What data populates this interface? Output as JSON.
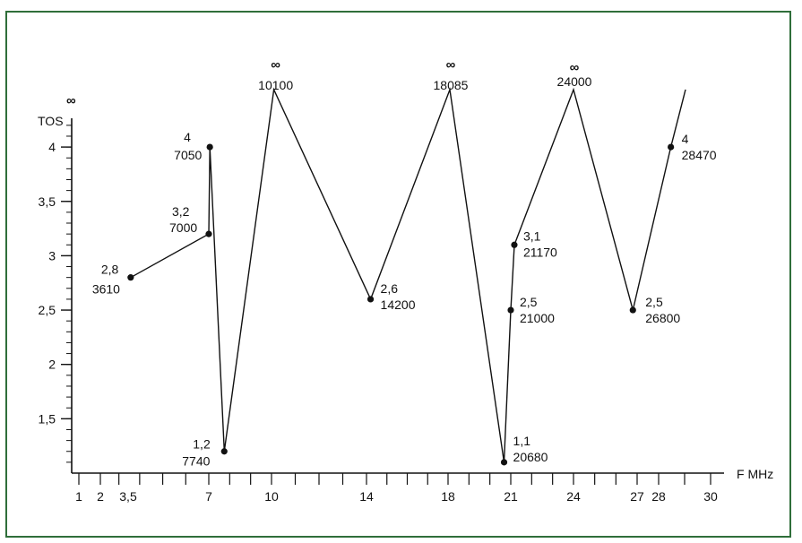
{
  "chart_data": {
    "type": "line",
    "y_axis_title": "TOS",
    "x_axis_title": "F MHz",
    "y_top_symbol": "∞",
    "y_ticks": [
      "1,5",
      "2",
      "2,5",
      "3",
      "3,5",
      "4"
    ],
    "x_ticks": [
      "1",
      "2",
      "3,5",
      "7",
      "10",
      "14",
      "18",
      "21",
      "24",
      "27",
      "28",
      "30"
    ],
    "ylim": [
      1,
      4.5
    ],
    "xlim": [
      0,
      31
    ],
    "grid": false,
    "series": [
      {
        "points": [
          {
            "x": 3.61,
            "y": 2.8,
            "label1": "2,8",
            "label2": "3610",
            "marker": true
          },
          {
            "x": 7.0,
            "y": 3.2,
            "label1": "3,2",
            "label2": "7000",
            "marker": true
          },
          {
            "x": 7.05,
            "y": 4.0,
            "label1": "4",
            "label2": "7050",
            "marker": true
          },
          {
            "x": 7.74,
            "y": 1.2,
            "label1": "1,2",
            "label2": "7740",
            "marker": true
          },
          {
            "x": 10.1,
            "y": "∞",
            "label1": "∞",
            "label2": "10100",
            "marker": false
          },
          {
            "x": 14.2,
            "y": 2.6,
            "label1": "2,6",
            "label2": "14200",
            "marker": true
          },
          {
            "x": 18.085,
            "y": "∞",
            "label1": "∞",
            "label2": "18085",
            "marker": false
          },
          {
            "x": 20.68,
            "y": 1.1,
            "label1": "1,1",
            "label2": "20680",
            "marker": true
          },
          {
            "x": 21.0,
            "y": 2.5,
            "label1": "2,5",
            "label2": "21000",
            "marker": true
          },
          {
            "x": 21.17,
            "y": 3.1,
            "label1": "3,1",
            "label2": "21170",
            "marker": true
          },
          {
            "x": 24.0,
            "y": "∞",
            "label1": "∞",
            "label2": "24000",
            "marker": false
          },
          {
            "x": 26.8,
            "y": 2.5,
            "label1": "2,5",
            "label2": "26800",
            "marker": true
          },
          {
            "x": 28.47,
            "y": 4.0,
            "label1": "4",
            "label2": "28470",
            "marker": true
          }
        ]
      }
    ]
  }
}
